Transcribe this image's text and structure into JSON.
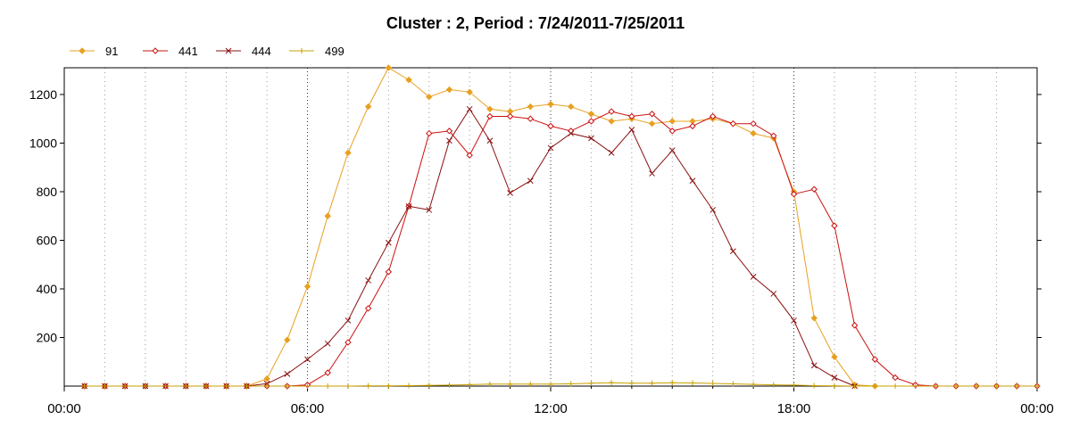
{
  "chart_data": {
    "type": "line",
    "title": "Cluster : 2, Period : 7/24/2011-7/25/2011",
    "xlabel": "",
    "ylabel": "",
    "x_ticks": [
      "00:00",
      "06:00",
      "12:00",
      "18:00",
      "00:00"
    ],
    "x_tick_hours": [
      0,
      6,
      12,
      18,
      24
    ],
    "y_ticks": [
      200,
      400,
      600,
      800,
      1000,
      1200
    ],
    "xlim": [
      0,
      24
    ],
    "ylim": [
      0,
      1310
    ],
    "grid": "vertical dotted, hourly",
    "legend_position": "top-left",
    "series": [
      {
        "name": "91",
        "color": "#e8a020",
        "marker": "diamond",
        "x": [
          0.5,
          1,
          1.5,
          2,
          2.5,
          3,
          3.5,
          4,
          4.5,
          5,
          5.5,
          6,
          6.5,
          7,
          7.5,
          8,
          8.5,
          9,
          9.5,
          10,
          10.5,
          11,
          11.5,
          12,
          12.5,
          13,
          13.5,
          14,
          14.5,
          15,
          15.5,
          16,
          16.5,
          17,
          17.5,
          18,
          18.5,
          19,
          19.5,
          20
        ],
        "values": [
          0,
          0,
          0,
          0,
          0,
          0,
          0,
          0,
          0,
          30,
          190,
          410,
          700,
          960,
          1150,
          1310,
          1260,
          1190,
          1220,
          1210,
          1140,
          1130,
          1150,
          1160,
          1150,
          1120,
          1090,
          1100,
          1080,
          1090,
          1090,
          1100,
          1080,
          1040,
          1020,
          800,
          280,
          120,
          5,
          0
        ]
      },
      {
        "name": "441",
        "color": "#cc1010",
        "marker": "diamond-open",
        "x": [
          0.5,
          1,
          1.5,
          2,
          2.5,
          3,
          3.5,
          4,
          4.5,
          5,
          5.5,
          6,
          6.5,
          7,
          7.5,
          8,
          8.5,
          9,
          9.5,
          10,
          10.5,
          11,
          11.5,
          12,
          12.5,
          13,
          13.5,
          14,
          14.5,
          15,
          15.5,
          16,
          16.5,
          17,
          17.5,
          18,
          18.5,
          19,
          19.5,
          20,
          20.5,
          21,
          21.5,
          22,
          22.5,
          23,
          23.5,
          24
        ],
        "values": [
          0,
          0,
          0,
          0,
          0,
          0,
          0,
          0,
          0,
          0,
          0,
          5,
          55,
          180,
          320,
          470,
          740,
          1040,
          1050,
          950,
          1110,
          1110,
          1100,
          1070,
          1050,
          1090,
          1130,
          1110,
          1120,
          1050,
          1070,
          1110,
          1080,
          1080,
          1030,
          790,
          810,
          660,
          250,
          110,
          35,
          5,
          0,
          0,
          0,
          0,
          0,
          0
        ]
      },
      {
        "name": "444",
        "color": "#8a1010",
        "marker": "x",
        "x": [
          0.5,
          1,
          1.5,
          2,
          2.5,
          3,
          3.5,
          4,
          4.5,
          5,
          5.5,
          6,
          6.5,
          7,
          7.5,
          8,
          8.5,
          9,
          9.5,
          10,
          10.5,
          11,
          11.5,
          12,
          12.5,
          13,
          13.5,
          14,
          14.5,
          15,
          15.5,
          16,
          16.5,
          17,
          17.5,
          18,
          18.5,
          19,
          19.5
        ],
        "values": [
          0,
          0,
          0,
          0,
          0,
          0,
          0,
          0,
          0,
          10,
          50,
          110,
          175,
          270,
          435,
          590,
          740,
          725,
          1010,
          1140,
          1010,
          795,
          845,
          980,
          1040,
          1020,
          960,
          1055,
          875,
          970,
          845,
          725,
          555,
          450,
          380,
          270,
          85,
          35,
          0
        ]
      },
      {
        "name": "499",
        "color": "#c8a000",
        "marker": "plus",
        "x": [
          0.5,
          1,
          1.5,
          2,
          2.5,
          3,
          3.5,
          4,
          4.5,
          5,
          5.5,
          6,
          6.5,
          7,
          7.5,
          8,
          8.5,
          9,
          9.5,
          10,
          10.5,
          11,
          11.5,
          12,
          12.5,
          13,
          13.5,
          14,
          14.5,
          15,
          15.5,
          16,
          16.5,
          17,
          17.5,
          18,
          18.5,
          19,
          19.5,
          20,
          20.5,
          21,
          21.5,
          22,
          22.5,
          23,
          23.5,
          24
        ],
        "values": [
          0,
          0,
          0,
          0,
          0,
          0,
          0,
          0,
          0,
          0,
          0,
          0,
          0,
          0,
          1,
          1,
          2,
          3,
          4,
          6,
          8,
          8,
          8,
          8,
          9,
          12,
          14,
          12,
          12,
          14,
          13,
          11,
          9,
          7,
          5,
          4,
          2,
          1,
          0,
          0,
          0,
          0,
          0,
          0,
          0,
          0,
          0,
          0
        ]
      }
    ]
  }
}
